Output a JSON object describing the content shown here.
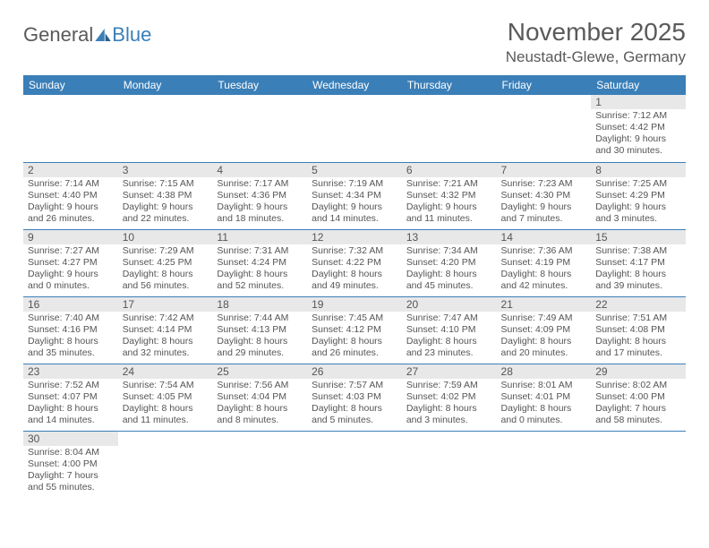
{
  "logo": {
    "part1": "General",
    "part2": "Blue"
  },
  "title": "November 2025",
  "location": "Neustadt-Glewe, Germany",
  "dayHeaders": [
    "Sunday",
    "Monday",
    "Tuesday",
    "Wednesday",
    "Thursday",
    "Friday",
    "Saturday"
  ],
  "colors": {
    "headerBg": "#3a7fb8",
    "headerText": "#ffffff",
    "dayNumBg": "#e8e8e8",
    "bodyText": "#555555",
    "borderColor": "#3a7fb8"
  },
  "weeks": [
    [
      {
        "num": "",
        "lines": []
      },
      {
        "num": "",
        "lines": []
      },
      {
        "num": "",
        "lines": []
      },
      {
        "num": "",
        "lines": []
      },
      {
        "num": "",
        "lines": []
      },
      {
        "num": "",
        "lines": []
      },
      {
        "num": "1",
        "lines": [
          "Sunrise: 7:12 AM",
          "Sunset: 4:42 PM",
          "Daylight: 9 hours",
          "and 30 minutes."
        ]
      }
    ],
    [
      {
        "num": "2",
        "lines": [
          "Sunrise: 7:14 AM",
          "Sunset: 4:40 PM",
          "Daylight: 9 hours",
          "and 26 minutes."
        ]
      },
      {
        "num": "3",
        "lines": [
          "Sunrise: 7:15 AM",
          "Sunset: 4:38 PM",
          "Daylight: 9 hours",
          "and 22 minutes."
        ]
      },
      {
        "num": "4",
        "lines": [
          "Sunrise: 7:17 AM",
          "Sunset: 4:36 PM",
          "Daylight: 9 hours",
          "and 18 minutes."
        ]
      },
      {
        "num": "5",
        "lines": [
          "Sunrise: 7:19 AM",
          "Sunset: 4:34 PM",
          "Daylight: 9 hours",
          "and 14 minutes."
        ]
      },
      {
        "num": "6",
        "lines": [
          "Sunrise: 7:21 AM",
          "Sunset: 4:32 PM",
          "Daylight: 9 hours",
          "and 11 minutes."
        ]
      },
      {
        "num": "7",
        "lines": [
          "Sunrise: 7:23 AM",
          "Sunset: 4:30 PM",
          "Daylight: 9 hours",
          "and 7 minutes."
        ]
      },
      {
        "num": "8",
        "lines": [
          "Sunrise: 7:25 AM",
          "Sunset: 4:29 PM",
          "Daylight: 9 hours",
          "and 3 minutes."
        ]
      }
    ],
    [
      {
        "num": "9",
        "lines": [
          "Sunrise: 7:27 AM",
          "Sunset: 4:27 PM",
          "Daylight: 9 hours",
          "and 0 minutes."
        ]
      },
      {
        "num": "10",
        "lines": [
          "Sunrise: 7:29 AM",
          "Sunset: 4:25 PM",
          "Daylight: 8 hours",
          "and 56 minutes."
        ]
      },
      {
        "num": "11",
        "lines": [
          "Sunrise: 7:31 AM",
          "Sunset: 4:24 PM",
          "Daylight: 8 hours",
          "and 52 minutes."
        ]
      },
      {
        "num": "12",
        "lines": [
          "Sunrise: 7:32 AM",
          "Sunset: 4:22 PM",
          "Daylight: 8 hours",
          "and 49 minutes."
        ]
      },
      {
        "num": "13",
        "lines": [
          "Sunrise: 7:34 AM",
          "Sunset: 4:20 PM",
          "Daylight: 8 hours",
          "and 45 minutes."
        ]
      },
      {
        "num": "14",
        "lines": [
          "Sunrise: 7:36 AM",
          "Sunset: 4:19 PM",
          "Daylight: 8 hours",
          "and 42 minutes."
        ]
      },
      {
        "num": "15",
        "lines": [
          "Sunrise: 7:38 AM",
          "Sunset: 4:17 PM",
          "Daylight: 8 hours",
          "and 39 minutes."
        ]
      }
    ],
    [
      {
        "num": "16",
        "lines": [
          "Sunrise: 7:40 AM",
          "Sunset: 4:16 PM",
          "Daylight: 8 hours",
          "and 35 minutes."
        ]
      },
      {
        "num": "17",
        "lines": [
          "Sunrise: 7:42 AM",
          "Sunset: 4:14 PM",
          "Daylight: 8 hours",
          "and 32 minutes."
        ]
      },
      {
        "num": "18",
        "lines": [
          "Sunrise: 7:44 AM",
          "Sunset: 4:13 PM",
          "Daylight: 8 hours",
          "and 29 minutes."
        ]
      },
      {
        "num": "19",
        "lines": [
          "Sunrise: 7:45 AM",
          "Sunset: 4:12 PM",
          "Daylight: 8 hours",
          "and 26 minutes."
        ]
      },
      {
        "num": "20",
        "lines": [
          "Sunrise: 7:47 AM",
          "Sunset: 4:10 PM",
          "Daylight: 8 hours",
          "and 23 minutes."
        ]
      },
      {
        "num": "21",
        "lines": [
          "Sunrise: 7:49 AM",
          "Sunset: 4:09 PM",
          "Daylight: 8 hours",
          "and 20 minutes."
        ]
      },
      {
        "num": "22",
        "lines": [
          "Sunrise: 7:51 AM",
          "Sunset: 4:08 PM",
          "Daylight: 8 hours",
          "and 17 minutes."
        ]
      }
    ],
    [
      {
        "num": "23",
        "lines": [
          "Sunrise: 7:52 AM",
          "Sunset: 4:07 PM",
          "Daylight: 8 hours",
          "and 14 minutes."
        ]
      },
      {
        "num": "24",
        "lines": [
          "Sunrise: 7:54 AM",
          "Sunset: 4:05 PM",
          "Daylight: 8 hours",
          "and 11 minutes."
        ]
      },
      {
        "num": "25",
        "lines": [
          "Sunrise: 7:56 AM",
          "Sunset: 4:04 PM",
          "Daylight: 8 hours",
          "and 8 minutes."
        ]
      },
      {
        "num": "26",
        "lines": [
          "Sunrise: 7:57 AM",
          "Sunset: 4:03 PM",
          "Daylight: 8 hours",
          "and 5 minutes."
        ]
      },
      {
        "num": "27",
        "lines": [
          "Sunrise: 7:59 AM",
          "Sunset: 4:02 PM",
          "Daylight: 8 hours",
          "and 3 minutes."
        ]
      },
      {
        "num": "28",
        "lines": [
          "Sunrise: 8:01 AM",
          "Sunset: 4:01 PM",
          "Daylight: 8 hours",
          "and 0 minutes."
        ]
      },
      {
        "num": "29",
        "lines": [
          "Sunrise: 8:02 AM",
          "Sunset: 4:00 PM",
          "Daylight: 7 hours",
          "and 58 minutes."
        ]
      }
    ],
    [
      {
        "num": "30",
        "lines": [
          "Sunrise: 8:04 AM",
          "Sunset: 4:00 PM",
          "Daylight: 7 hours",
          "and 55 minutes."
        ]
      },
      {
        "num": "",
        "lines": []
      },
      {
        "num": "",
        "lines": []
      },
      {
        "num": "",
        "lines": []
      },
      {
        "num": "",
        "lines": []
      },
      {
        "num": "",
        "lines": []
      },
      {
        "num": "",
        "lines": []
      }
    ]
  ]
}
